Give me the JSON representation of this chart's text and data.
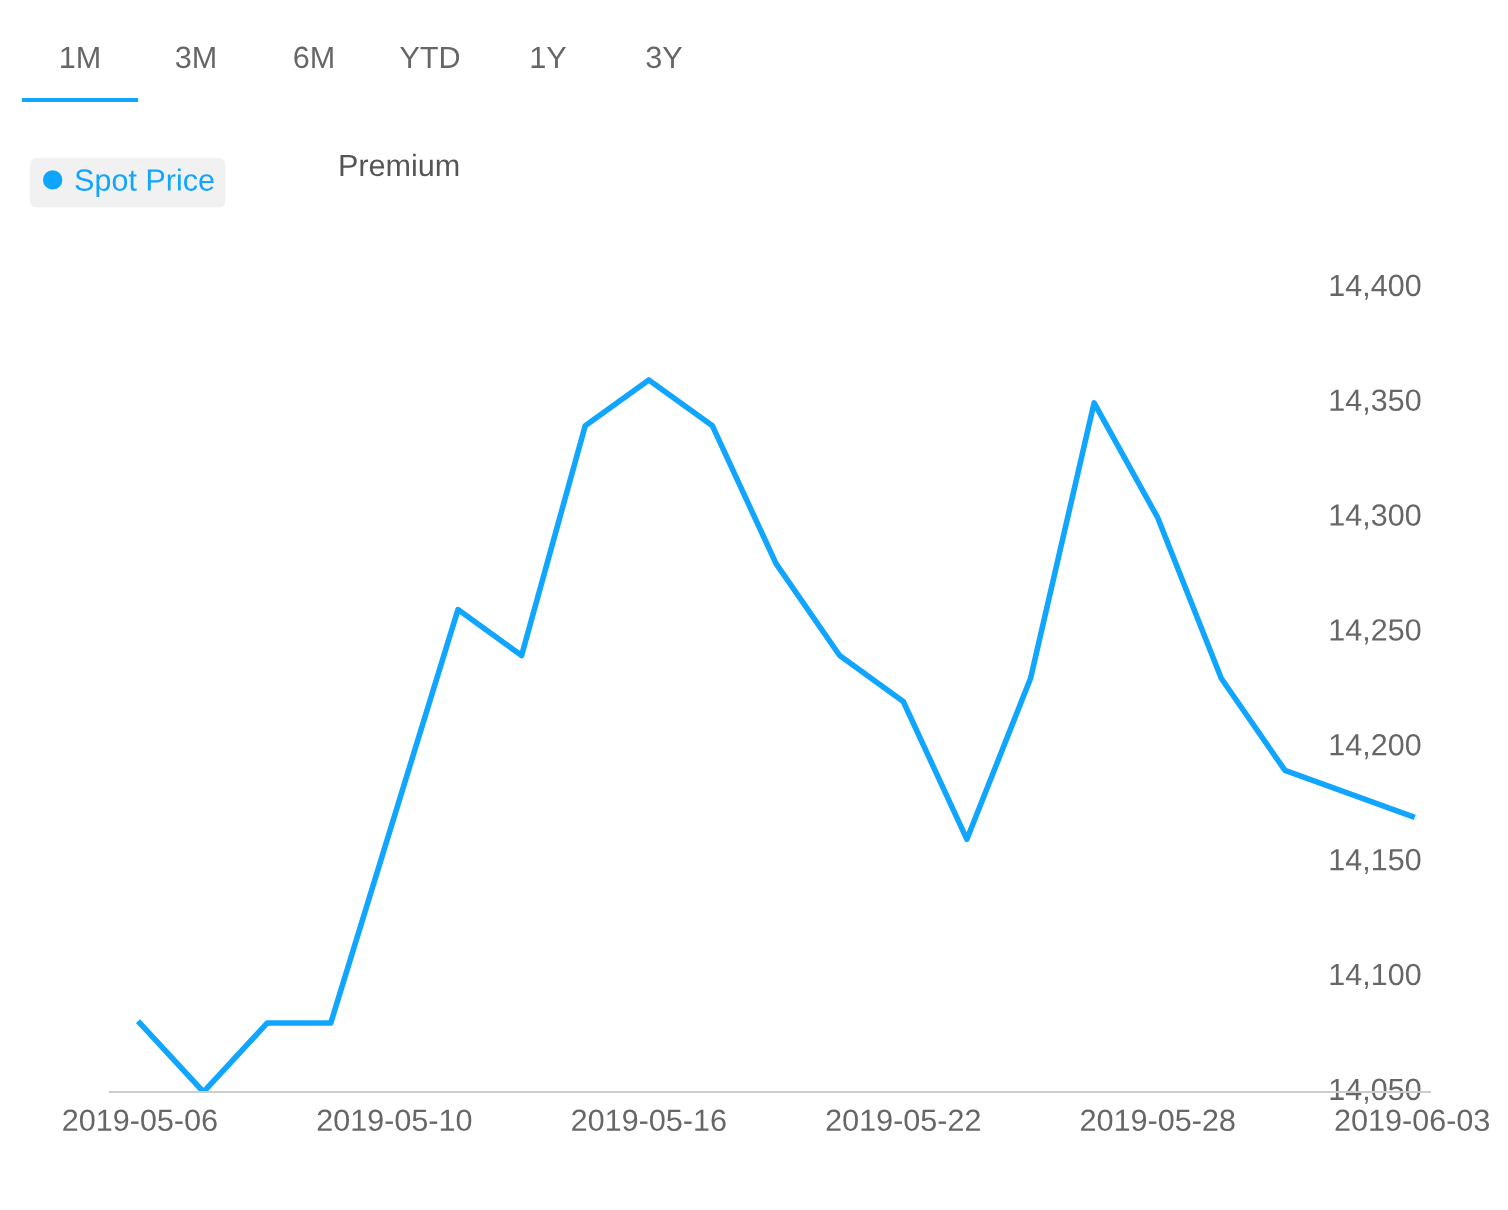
{
  "chart_data": {
    "type": "line",
    "categories": [
      "2019-05-06",
      null,
      null,
      null,
      "2019-05-10",
      null,
      null,
      null,
      "2019-05-16",
      null,
      null,
      null,
      "2019-05-22",
      null,
      null,
      null,
      "2019-05-28",
      null,
      null,
      null,
      "2019-06-03"
    ],
    "series": [
      {
        "name": "Spot Price",
        "color": "#10a5ff",
        "values": [
          14080,
          14050,
          14080,
          14080,
          14170,
          14260,
          14240,
          14340,
          14360,
          14340,
          14280,
          14240,
          14220,
          14160,
          14230,
          14350,
          14300,
          14230,
          14190,
          14180,
          14170
        ]
      }
    ],
    "ylim": [
      14050,
      14400
    ],
    "yticks": [
      {
        "value": 14050,
        "label": "14,050"
      },
      {
        "value": 14100,
        "label": "14,100"
      },
      {
        "value": 14150,
        "label": "14,150"
      },
      {
        "value": 14200,
        "label": "14,200"
      },
      {
        "value": 14250,
        "label": "14,250"
      },
      {
        "value": 14300,
        "label": "14,300"
      },
      {
        "value": 14350,
        "label": "14,350"
      },
      {
        "value": 14400,
        "label": "14,400"
      }
    ],
    "grid": false,
    "legend": "top left",
    "marker": "none",
    "line_style": "solid",
    "annotations": [
      "1M",
      "3M",
      "6M",
      "YTD",
      "1Y",
      "3Y",
      "Premium"
    ]
  }
}
